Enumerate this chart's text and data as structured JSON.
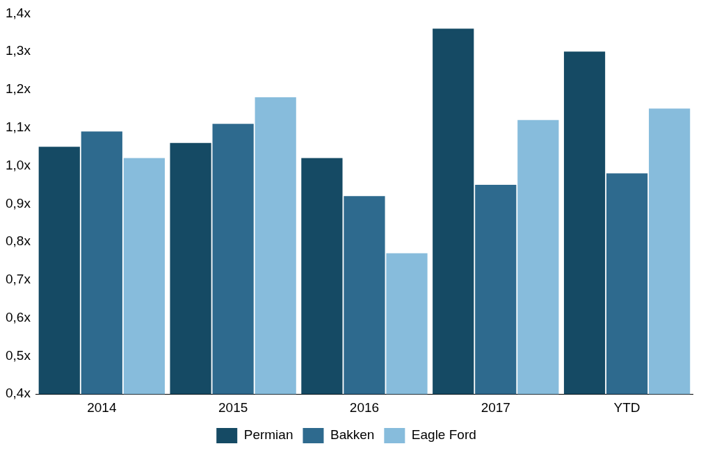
{
  "chart_data": {
    "type": "bar",
    "categories": [
      "2014",
      "2015",
      "2016",
      "2017",
      "YTD"
    ],
    "series": [
      {
        "name": "Permian",
        "color": "#154a64",
        "values": [
          1.05,
          1.06,
          1.02,
          1.36,
          1.3
        ]
      },
      {
        "name": "Bakken",
        "color": "#2e6a8e",
        "values": [
          1.09,
          1.11,
          0.92,
          0.95,
          0.98
        ]
      },
      {
        "name": "Eagle Ford",
        "color": "#87bcdc",
        "values": [
          1.02,
          1.18,
          0.77,
          1.12,
          1.15
        ]
      }
    ],
    "ylim": [
      0.4,
      1.4
    ],
    "yticks": [
      {
        "value": 0.4,
        "label": "0,4x"
      },
      {
        "value": 0.5,
        "label": "0,5x"
      },
      {
        "value": 0.6,
        "label": "0,6x"
      },
      {
        "value": 0.7,
        "label": "0,7x"
      },
      {
        "value": 0.8,
        "label": "0,8x"
      },
      {
        "value": 0.9,
        "label": "0,9x"
      },
      {
        "value": 1.0,
        "label": "1,0x"
      },
      {
        "value": 1.1,
        "label": "1,1x"
      },
      {
        "value": 1.2,
        "label": "1,2x"
      },
      {
        "value": 1.3,
        "label": "1,3x"
      },
      {
        "value": 1.4,
        "label": "1,4x"
      }
    ],
    "grid": false,
    "legend": "bottom"
  }
}
